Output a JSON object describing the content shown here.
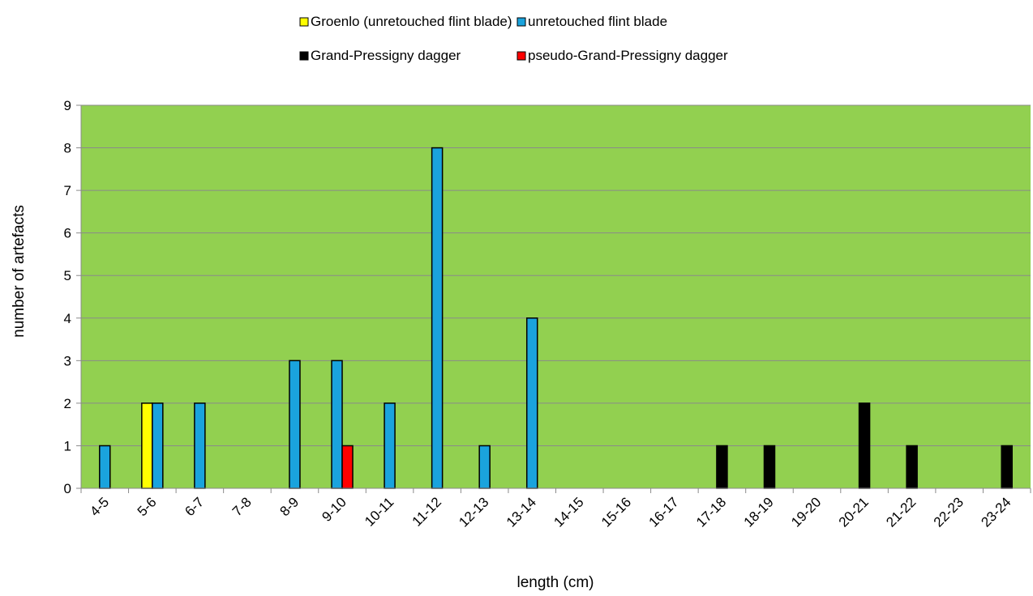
{
  "chart_data": {
    "type": "bar",
    "title": "",
    "xlabel": "length (cm)",
    "ylabel": "number of artefacts",
    "ylim": [
      0,
      9
    ],
    "yticks": [
      0,
      1,
      2,
      3,
      4,
      5,
      6,
      7,
      8,
      9
    ],
    "grid": true,
    "plot_background": "#92d050",
    "legend_position": "top",
    "categories": [
      "4-5",
      "5-6",
      "6-7",
      "7-8",
      "8-9",
      "9-10",
      "10-11",
      "11-12",
      "12-13",
      "13-14",
      "14-15",
      "15-16",
      "16-17",
      "17-18",
      "18-19",
      "19-20",
      "20-21",
      "21-22",
      "22-23",
      "23-24"
    ],
    "series": [
      {
        "name": "Groenlo (unretouched flint blade)",
        "color": "#ffff00",
        "values": [
          0,
          2,
          0,
          0,
          0,
          0,
          0,
          0,
          0,
          0,
          0,
          0,
          0,
          0,
          0,
          0,
          0,
          0,
          0,
          0
        ]
      },
      {
        "name": "unretouched flint blade",
        "color": "#1aa3dd",
        "values": [
          1,
          2,
          2,
          0,
          3,
          3,
          2,
          8,
          1,
          4,
          0,
          0,
          0,
          0,
          0,
          0,
          0,
          0,
          0,
          0
        ]
      },
      {
        "name": "Grand-Pressigny dagger",
        "color": "#000000",
        "values": [
          0,
          0,
          0,
          0,
          0,
          0,
          0,
          0,
          0,
          0,
          0,
          0,
          0,
          1,
          1,
          0,
          2,
          1,
          0,
          1
        ]
      },
      {
        "name": "pseudo-Grand-Pressigny dagger",
        "color": "#ff0000",
        "values": [
          0,
          0,
          0,
          0,
          0,
          1,
          0,
          0,
          0,
          0,
          0,
          0,
          0,
          0,
          0,
          0,
          0,
          0,
          0,
          0
        ]
      }
    ]
  }
}
